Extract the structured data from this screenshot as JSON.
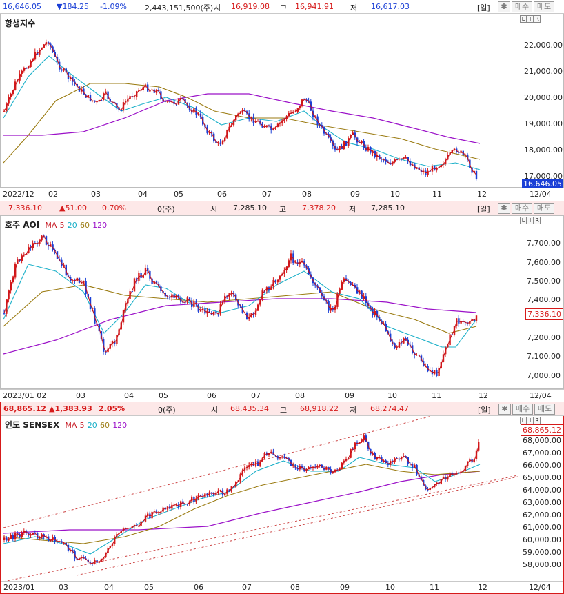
{
  "panel1": {
    "header": {
      "price": "16,646.05",
      "change": "▼184.25",
      "pct": "-1.09%",
      "volume": "2,443,151,500(주)",
      "open_label": "시",
      "open": "16,919.08",
      "high_label": "고",
      "high": "16,941.91",
      "low_label": "저",
      "low": "16,617.03"
    },
    "title": "항생지수",
    "y_ticks": [
      "22,000.00",
      "21,000.00",
      "20,000.00",
      "19,000.00",
      "18,000.00",
      "17,000.00"
    ],
    "current": "16,646.05",
    "x_labels": [
      "2022/12",
      "02",
      "03",
      "04",
      "05",
      "06",
      "07",
      "08",
      "09",
      "10",
      "11",
      "12"
    ],
    "x_end": "12/04"
  },
  "panel2": {
    "header": {
      "price": "7,336.10",
      "change": "▲51.00",
      "pct": "0.70%",
      "volume": "0(주)",
      "open_label": "시",
      "open": "7,285.10",
      "high_label": "고",
      "high": "7,378.20",
      "low_label": "저",
      "low": "7,285.10"
    },
    "title": "호주 AOI",
    "ma_label": "MA",
    "ma": [
      "5",
      "20",
      "60",
      "120"
    ],
    "y_ticks": [
      "7,700.00",
      "7,600.00",
      "7,500.00",
      "7,400.00",
      "7,300.00",
      "7,200.00",
      "7,100.00",
      "7,000.00"
    ],
    "current": "7,336.10",
    "x_labels": [
      "2023/01 02",
      "03",
      "04",
      "05",
      "06",
      "07",
      "08",
      "09",
      "10",
      "11",
      "12"
    ],
    "x_end": "12/04"
  },
  "panel3": {
    "header": {
      "price": "68,865.12",
      "change": "▲1,383.93",
      "pct": "2.05%",
      "volume": "0(주)",
      "open_label": "시",
      "open": "68,435.34",
      "high_label": "고",
      "high": "68,918.22",
      "low_label": "저",
      "low": "68,274.47"
    },
    "title": "인도 SENSEX",
    "ma_label": "MA",
    "ma": [
      "5",
      "20",
      "60",
      "120"
    ],
    "y_ticks": [
      "68,000.00",
      "67,000.00",
      "66,000.00",
      "65,000.00",
      "64,000.00",
      "63,000.00",
      "62,000.00",
      "61,000.00",
      "60,000.00",
      "59,000.00",
      "58,000.00"
    ],
    "current": "68,865.12",
    "x_labels": [
      "2023/01",
      "03",
      "04",
      "05",
      "06",
      "07",
      "08",
      "09",
      "10",
      "11",
      "12"
    ],
    "x_end": "12/04"
  },
  "buttons": {
    "day": "[일]",
    "buy": "매수",
    "sell": "매도"
  },
  "lir": [
    "L",
    "I",
    "R"
  ],
  "colors": {
    "up": "#d61a1a",
    "down": "#1a3fd6",
    "ma5": "#c4111b",
    "ma20": "#1bb0c9",
    "ma60": "#9a7a10",
    "ma120": "#9b11c8"
  }
}
